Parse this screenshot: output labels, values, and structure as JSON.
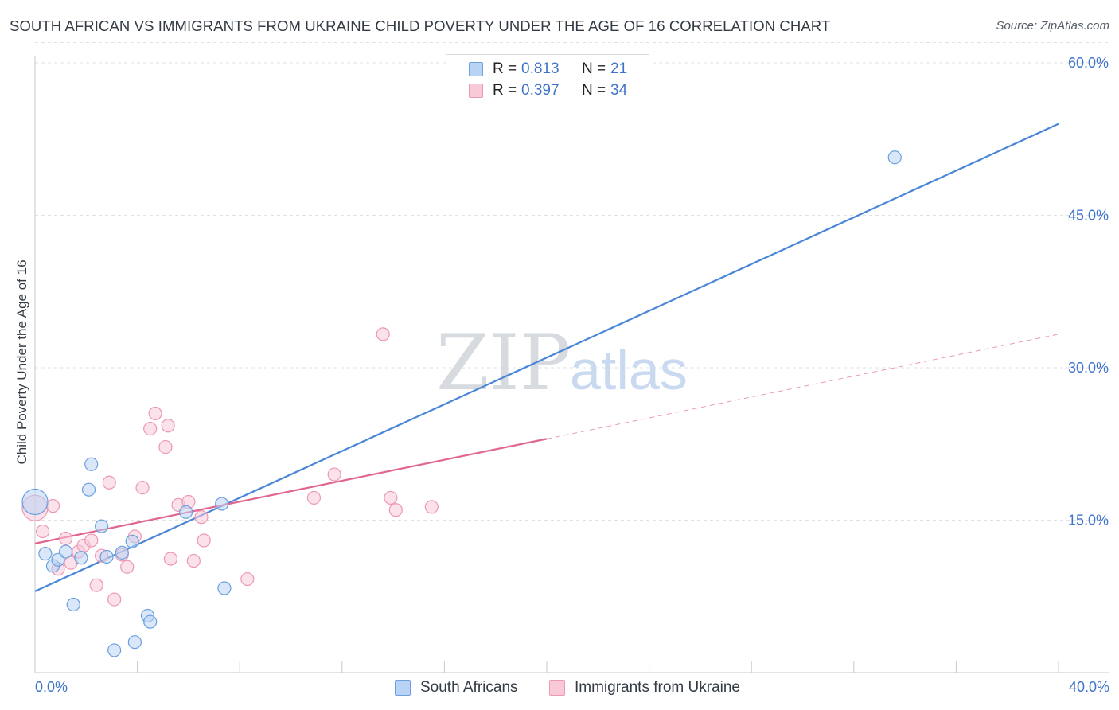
{
  "header": {
    "title": "SOUTH AFRICAN VS IMMIGRANTS FROM UKRAINE CHILD POVERTY UNDER THE AGE OF 16 CORRELATION CHART",
    "source": "Source: ZipAtlas.com"
  },
  "watermark": {
    "zip": "ZIP",
    "atlas": "atlas"
  },
  "legend": {
    "r_label": "R =",
    "n_label": "N =",
    "rows": [
      {
        "series": "South Africans",
        "r": "0.813",
        "n": "21",
        "color": "#4a86d8",
        "fill": "#b9d3f4",
        "stroke": "#6a9fe0"
      },
      {
        "series": "Immigrants from Ukraine",
        "r": "0.397",
        "n": "34",
        "color": "#e0668e",
        "fill": "#f8c9d7",
        "stroke": "#ee97b3"
      }
    ]
  },
  "bottom_legend": {
    "items": [
      "South Africans",
      "Immigrants from Ukraine"
    ]
  },
  "chart_data": {
    "type": "scatter",
    "title": "SOUTH AFRICAN VS IMMIGRANTS FROM UKRAINE CHILD POVERTY UNDER THE AGE OF 16 CORRELATION CHART",
    "xlabel": "",
    "ylabel": "Child Poverty Under the Age of 16",
    "xlim": [
      0,
      40
    ],
    "ylim": [
      0,
      62
    ],
    "x_tick_labels": [
      "0.0%",
      "40.0%"
    ],
    "y_ticks": [
      15,
      30,
      45,
      60
    ],
    "y_tick_labels": [
      "15.0%",
      "30.0%",
      "45.0%",
      "60.0%"
    ],
    "grid": "horizontal-dashed",
    "series": [
      {
        "name": "South Africans",
        "color": "#4a86d8",
        "points": [
          {
            "x": 0.0,
            "y": 16.8,
            "big": true
          },
          {
            "x": 0.4,
            "y": 11.7
          },
          {
            "x": 0.7,
            "y": 10.5
          },
          {
            "x": 0.9,
            "y": 11.1
          },
          {
            "x": 1.2,
            "y": 11.9
          },
          {
            "x": 1.5,
            "y": 6.7
          },
          {
            "x": 1.8,
            "y": 11.3
          },
          {
            "x": 2.1,
            "y": 18.0
          },
          {
            "x": 2.2,
            "y": 20.5
          },
          {
            "x": 2.6,
            "y": 14.4
          },
          {
            "x": 2.8,
            "y": 11.4
          },
          {
            "x": 3.1,
            "y": 2.2
          },
          {
            "x": 3.4,
            "y": 11.8
          },
          {
            "x": 3.8,
            "y": 12.9
          },
          {
            "x": 3.9,
            "y": 3.0
          },
          {
            "x": 4.4,
            "y": 5.6
          },
          {
            "x": 4.5,
            "y": 5.0
          },
          {
            "x": 5.9,
            "y": 15.8
          },
          {
            "x": 7.3,
            "y": 16.6
          },
          {
            "x": 7.4,
            "y": 8.3
          },
          {
            "x": 33.6,
            "y": 50.7
          }
        ],
        "trend": {
          "x1": 0,
          "y1": 8.0,
          "x2": 40,
          "y2": 54.0
        }
      },
      {
        "name": "Immigrants from Ukraine",
        "color": "#e0668e",
        "points": [
          {
            "x": 0.0,
            "y": 16.2,
            "big": true
          },
          {
            "x": 0.3,
            "y": 13.9
          },
          {
            "x": 0.7,
            "y": 16.4
          },
          {
            "x": 0.9,
            "y": 10.2
          },
          {
            "x": 1.2,
            "y": 13.2
          },
          {
            "x": 1.4,
            "y": 10.8
          },
          {
            "x": 1.7,
            "y": 11.9
          },
          {
            "x": 1.9,
            "y": 12.5
          },
          {
            "x": 2.2,
            "y": 13.0
          },
          {
            "x": 2.4,
            "y": 8.6
          },
          {
            "x": 2.6,
            "y": 11.5
          },
          {
            "x": 2.9,
            "y": 18.7
          },
          {
            "x": 3.1,
            "y": 7.2
          },
          {
            "x": 3.4,
            "y": 11.6
          },
          {
            "x": 3.6,
            "y": 10.4
          },
          {
            "x": 3.9,
            "y": 13.4
          },
          {
            "x": 4.2,
            "y": 18.2
          },
          {
            "x": 4.5,
            "y": 24.0
          },
          {
            "x": 4.7,
            "y": 25.5
          },
          {
            "x": 5.1,
            "y": 22.2
          },
          {
            "x": 5.2,
            "y": 24.3
          },
          {
            "x": 5.3,
            "y": 11.2
          },
          {
            "x": 5.6,
            "y": 16.5
          },
          {
            "x": 6.0,
            "y": 16.8
          },
          {
            "x": 6.2,
            "y": 11.0
          },
          {
            "x": 6.5,
            "y": 15.3
          },
          {
            "x": 6.6,
            "y": 13.0
          },
          {
            "x": 8.3,
            "y": 9.2
          },
          {
            "x": 10.9,
            "y": 17.2
          },
          {
            "x": 11.7,
            "y": 19.5
          },
          {
            "x": 13.6,
            "y": 33.3
          },
          {
            "x": 13.9,
            "y": 17.2
          },
          {
            "x": 14.1,
            "y": 16.0
          },
          {
            "x": 15.5,
            "y": 16.3
          }
        ],
        "trend": {
          "x1": 0,
          "y1": 12.7,
          "x2": 20,
          "y2": 23.0
        },
        "trend_extended": {
          "x1": 20,
          "y1": 23.0,
          "x2": 40,
          "y2": 33.3
        }
      }
    ]
  }
}
